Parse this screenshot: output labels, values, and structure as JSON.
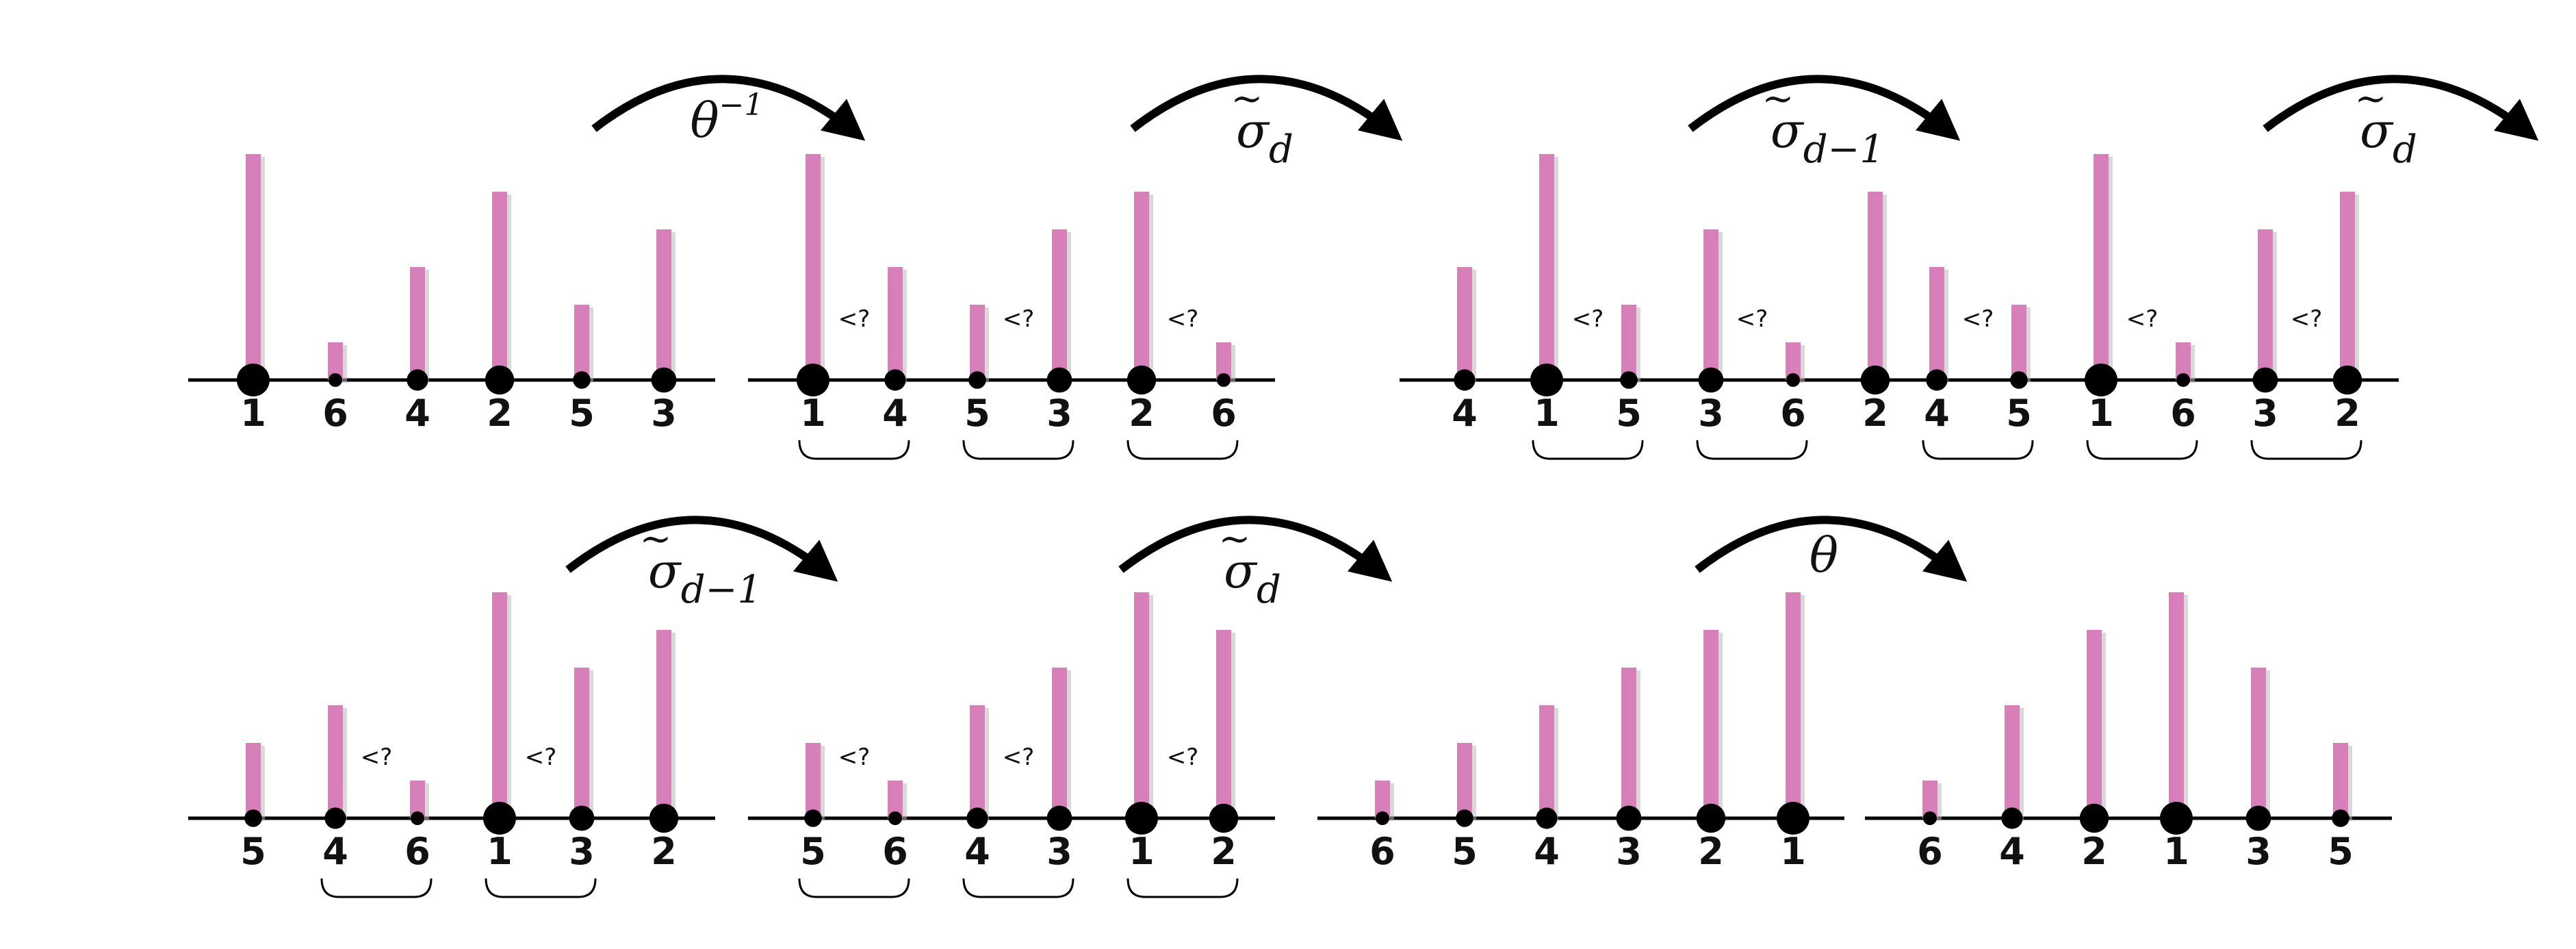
{
  "colors": {
    "bar": "#d67fb8",
    "bar_shadow": "#b9b9b9",
    "ink": "#000000"
  },
  "comparison_label": "<?",
  "operators": [
    {
      "base": "θ",
      "sup": "−1",
      "sub": "",
      "tilde": false
    },
    {
      "base": "σ",
      "sup": "",
      "sub": "d",
      "tilde": true
    },
    {
      "base": "σ",
      "sup": "",
      "sub": "d−1",
      "tilde": true
    },
    {
      "base": "σ",
      "sup": "",
      "sub": "d",
      "tilde": true
    },
    {
      "base": "σ",
      "sup": "",
      "sub": "d−1",
      "tilde": true
    },
    {
      "base": "σ",
      "sup": "",
      "sub": "d",
      "tilde": true
    },
    {
      "base": "θ",
      "sup": "",
      "sub": "",
      "tilde": false
    }
  ],
  "panels": [
    {
      "labels": [
        "1",
        "6",
        "4",
        "2",
        "5",
        "3"
      ],
      "pairs": []
    },
    {
      "labels": [
        "1",
        "4",
        "5",
        "3",
        "2",
        "6"
      ],
      "pairs": [
        [
          0,
          1
        ],
        [
          2,
          3
        ],
        [
          4,
          5
        ]
      ]
    },
    {
      "labels": [
        "4",
        "1",
        "5",
        "3",
        "6",
        "2"
      ],
      "pairs": [
        [
          1,
          2
        ],
        [
          3,
          4
        ]
      ]
    },
    {
      "labels": [
        "4",
        "5",
        "1",
        "6",
        "3",
        "2"
      ],
      "pairs": [
        [
          0,
          1
        ],
        [
          2,
          3
        ],
        [
          4,
          5
        ]
      ]
    },
    {
      "labels": [
        "5",
        "4",
        "6",
        "1",
        "3",
        "2"
      ],
      "pairs": [
        [
          1,
          2
        ],
        [
          3,
          4
        ]
      ]
    },
    {
      "labels": [
        "5",
        "6",
        "4",
        "3",
        "1",
        "2"
      ],
      "pairs": [
        [
          0,
          1
        ],
        [
          2,
          3
        ],
        [
          4,
          5
        ]
      ]
    },
    {
      "labels": [
        "6",
        "5",
        "4",
        "3",
        "2",
        "1"
      ],
      "pairs": []
    },
    {
      "labels": [
        "6",
        "4",
        "2",
        "1",
        "3",
        "5"
      ],
      "pairs": []
    }
  ]
}
